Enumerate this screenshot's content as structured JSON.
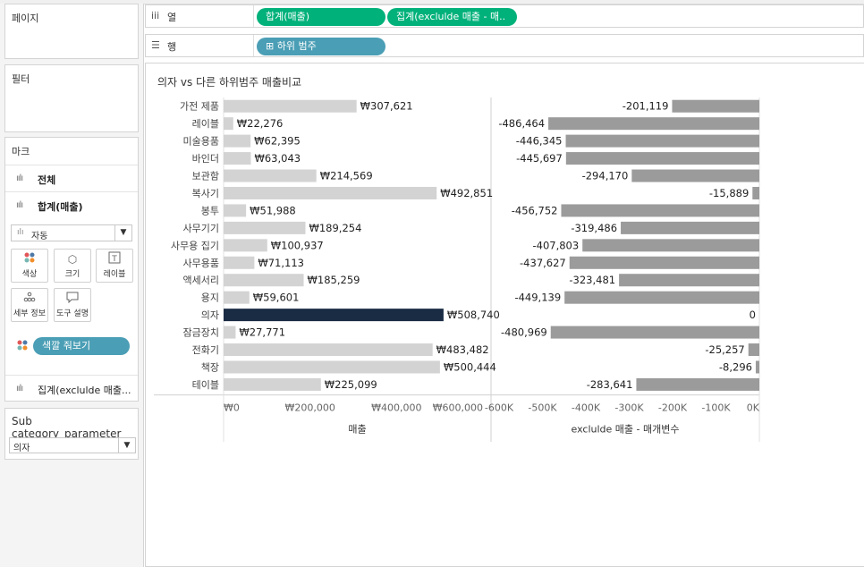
{
  "left_panel": {
    "pages_title": "페이지",
    "filters_title": "필터",
    "marks_title": "마크",
    "mark_rows": [
      {
        "label": "전체"
      },
      {
        "label": "합계(매출)"
      },
      {
        "label": "집계(exclulde 매출..."
      }
    ],
    "mark_type": "자동",
    "mark_buttons": [
      {
        "label": "색상",
        "icon": "color-icon"
      },
      {
        "label": "크기",
        "icon": "size-icon"
      },
      {
        "label": "레이블",
        "icon": "label-icon"
      },
      {
        "label": "세부 정보",
        "icon": "detail-icon"
      },
      {
        "label": "도구 설명",
        "icon": "tooltip-icon"
      }
    ],
    "color_pill": "색깔 줘보기",
    "parameter_title": "Sub category_parameter",
    "parameter_value": "의자"
  },
  "shelves": {
    "columns_label": "열",
    "rows_label": "행",
    "columns_pills": [
      "합계(매출)",
      "집계(exclulde 매출 - 매.."
    ],
    "rows_pills": [
      "⊞ 하위 범주"
    ]
  },
  "chart_data": {
    "type": "bar",
    "title": "의자 vs 다른 하위범주 매출비교",
    "categories": [
      "가전 제품",
      "레이블",
      "미술용품",
      "바인더",
      "보관함",
      "복사기",
      "봉투",
      "사무기기",
      "사무용 집기",
      "사무용품",
      "액세서리",
      "용지",
      "의자",
      "잠금장치",
      "전화기",
      "책장",
      "테이블"
    ],
    "highlight_category": "의자",
    "colors": {
      "left_bar": "#d3d3d3",
      "highlight_bar": "#1a2b44",
      "right_bar": "#9b9b9b",
      "pill_green": "#00b17a",
      "pill_blue": "#4a9eb5",
      "pill_color": "#4a9eb5"
    },
    "panels": [
      {
        "name": "매출",
        "xlabel": "매출",
        "xlim": [
          0,
          600000
        ],
        "ticks": [
          0,
          200000,
          400000,
          600000
        ],
        "tick_labels": [
          "₩0",
          "₩200,000",
          "₩400,000",
          "₩600,000"
        ],
        "values": [
          307621,
          22276,
          62395,
          63043,
          214569,
          492851,
          51988,
          189254,
          100937,
          71113,
          185259,
          59601,
          508740,
          27771,
          483482,
          500444,
          225099
        ],
        "labels": [
          "₩307,621",
          "₩22,276",
          "₩62,395",
          "₩63,043",
          "₩214,569",
          "₩492,851",
          "₩51,988",
          "₩189,254",
          "₩100,937",
          "₩71,113",
          "₩185,259",
          "₩59,601",
          "₩508,740",
          "₩27,771",
          "₩483,482",
          "₩500,444",
          "₩225,099"
        ]
      },
      {
        "name": "exclulde 매출 - 매개변수",
        "xlabel": "exclulde 매출 - 매개변수",
        "xlim": [
          -600000,
          0
        ],
        "ticks": [
          -600000,
          -500000,
          -400000,
          -300000,
          -200000,
          -100000,
          0
        ],
        "tick_labels": [
          "-600K",
          "-500K",
          "-400K",
          "-300K",
          "-200K",
          "-100K",
          "0K"
        ],
        "values": [
          -201119,
          -486464,
          -446345,
          -445697,
          -294170,
          -15889,
          -456752,
          -319486,
          -407803,
          -437627,
          -323481,
          -449139,
          0,
          -480969,
          -25257,
          -8296,
          -283641
        ],
        "labels": [
          "-201,119",
          "-486,464",
          "-446,345",
          "-445,697",
          "-294,170",
          "-15,889",
          "-456,752",
          "-319,486",
          "-407,803",
          "-437,627",
          "-323,481",
          "-449,139",
          "0",
          "-480,969",
          "-25,257",
          "-8,296",
          "-283,641"
        ]
      }
    ]
  }
}
